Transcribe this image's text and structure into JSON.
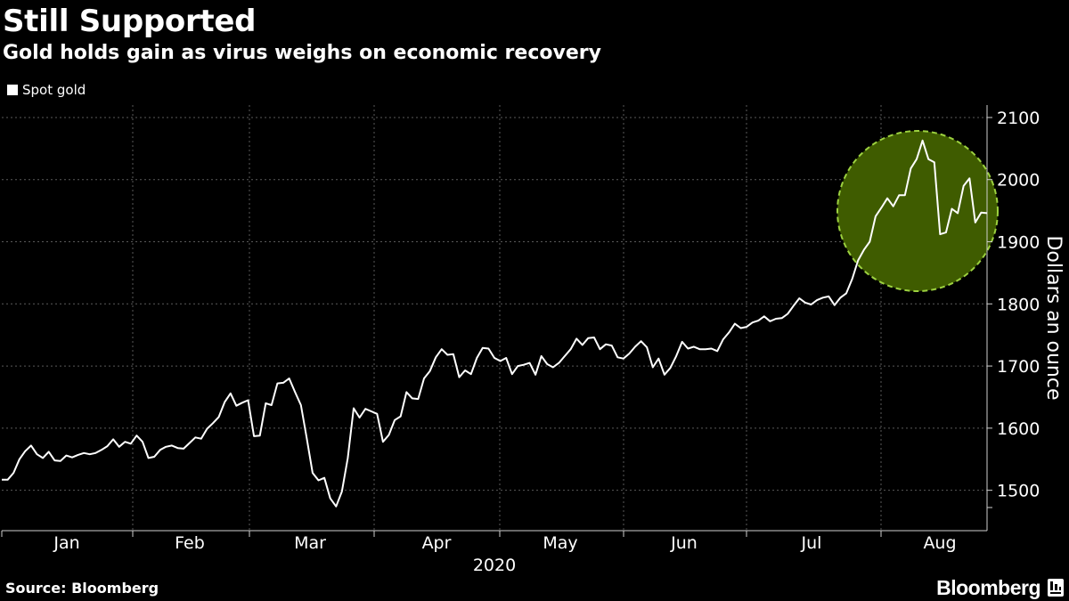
{
  "header": {
    "title": "Still Supported",
    "subtitle": "Gold holds gain as virus weighs on economic recovery"
  },
  "footer": {
    "source": "Source: Bloomberg",
    "brand": "Bloomberg"
  },
  "colors": {
    "background": "#000000",
    "line": "#ffffff",
    "grid": "#5a5a5a",
    "highlight_fill": "#3f5c00",
    "highlight_stroke": "#9cd13f"
  },
  "chart_data": {
    "type": "line",
    "legend": "Spot gold",
    "legend_position": "top-left",
    "ylabel": "Dollars an ounce",
    "year_label": "2020",
    "ylim": [
      1435,
      2120
    ],
    "yticks": [
      1500,
      1600,
      1700,
      1800,
      1900,
      2000,
      2100
    ],
    "grid": true,
    "months": [
      "Jan",
      "Feb",
      "Mar",
      "Apr",
      "May",
      "Jun",
      "Jul",
      "Aug"
    ],
    "highlight": {
      "shape": "circle",
      "period": "late Jul - mid Aug",
      "center_y": 1945
    },
    "series": [
      {
        "name": "Spot gold",
        "values": [
          1517,
          1517,
          1528,
          1550,
          1563,
          1572,
          1558,
          1552,
          1562,
          1548,
          1547,
          1556,
          1553,
          1557,
          1560,
          1558,
          1560,
          1565,
          1571,
          1582,
          1570,
          1578,
          1575,
          1588,
          1578,
          1552,
          1554,
          1565,
          1570,
          1572,
          1568,
          1567,
          1576,
          1585,
          1583,
          1599,
          1608,
          1618,
          1642,
          1656,
          1636,
          1641,
          1645,
          1587,
          1588,
          1640,
          1637,
          1672,
          1673,
          1680,
          1658,
          1637,
          1584,
          1528,
          1516,
          1520,
          1487,
          1474,
          1498,
          1552,
          1632,
          1617,
          1631,
          1627,
          1623,
          1578,
          1589,
          1613,
          1619,
          1658,
          1648,
          1647,
          1680,
          1692,
          1714,
          1727,
          1718,
          1719,
          1682,
          1693,
          1687,
          1713,
          1729,
          1728,
          1713,
          1708,
          1713,
          1687,
          1700,
          1702,
          1705,
          1686,
          1716,
          1703,
          1698,
          1705,
          1716,
          1727,
          1744,
          1734,
          1745,
          1746,
          1727,
          1735,
          1733,
          1714,
          1712,
          1720,
          1731,
          1740,
          1730,
          1698,
          1712,
          1686,
          1697,
          1716,
          1739,
          1728,
          1731,
          1727,
          1727,
          1728,
          1724,
          1743,
          1754,
          1768,
          1761,
          1763,
          1770,
          1773,
          1780,
          1772,
          1776,
          1777,
          1784,
          1797,
          1809,
          1802,
          1799,
          1806,
          1810,
          1812,
          1798,
          1810,
          1817,
          1840,
          1870,
          1887,
          1900,
          1941,
          1955,
          1970,
          1957,
          1975,
          1975,
          2018,
          2033,
          2063,
          2033,
          2028,
          1912,
          1915,
          1953,
          1946,
          1990,
          2002,
          1931,
          1947,
          1946
        ]
      }
    ]
  }
}
